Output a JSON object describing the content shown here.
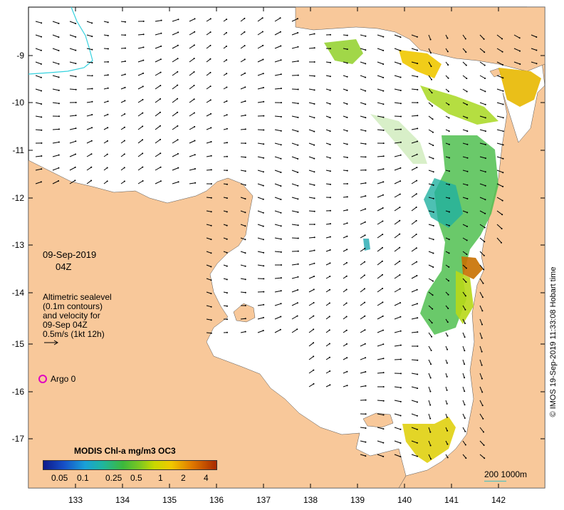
{
  "map": {
    "y_ticks": [
      "-9",
      "-10",
      "-11",
      "-12",
      "-13",
      "-14",
      "-15",
      "-16",
      "-17"
    ],
    "x_ticks": [
      "133",
      "134",
      "135",
      "136",
      "137",
      "138",
      "139",
      "140",
      "141",
      "142"
    ],
    "colors": {
      "land": "#f8c89a",
      "sea": "#ffffff",
      "contour": "#35d2df",
      "argo": "#e000c0"
    }
  },
  "labels": {
    "date": "09-Sep-2019",
    "time": "04Z",
    "legend_lines": [
      "Altimetric sealevel",
      "(0.1m contours)",
      "and velocity for",
      "09-Sep 04Z",
      "0.5m/s (1kt 12h)"
    ],
    "argo": "Argo 0",
    "colorbar_title": "MODIS Chl-a mg/m3 OC3",
    "colorbar_ticks": [
      "0.05",
      "0.1",
      "0.25",
      "0.5",
      "1",
      "2",
      "4"
    ],
    "scale": "200  1000m",
    "credit": "© IMOS 19-Sep-2019 11:33:08 Hobart time"
  }
}
